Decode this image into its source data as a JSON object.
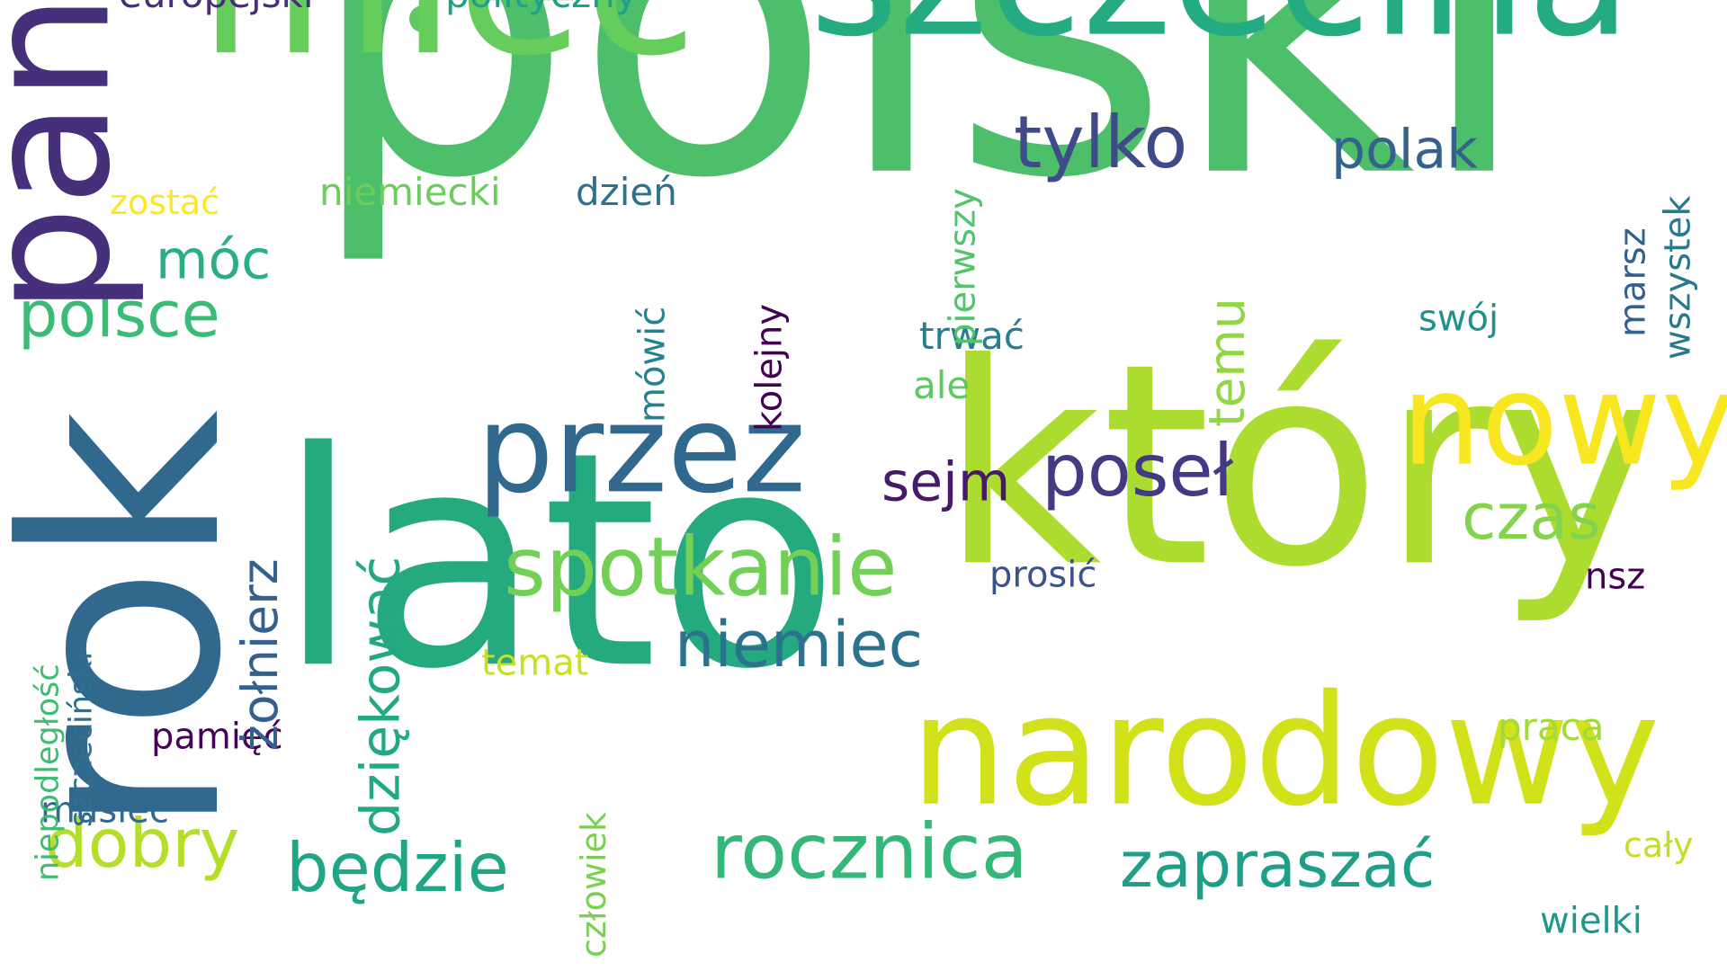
{
  "colors": {
    "c_polski": "#4dbf6a",
    "c_lato": "#25a97f",
    "c_rok": "#30688e",
    "c_ktory": "#addc30",
    "c_miec": "#66cc5c",
    "c_szczecina": "#25ab82",
    "c_pan": "#46307c",
    "c_narodowy": "#d1e21b",
    "c_nowy": "#f8e621",
    "c_przez": "#31688e",
    "c_spotkanie": "#71d055",
    "c_rocznica": "#35b779",
    "c_tylko": "#3e4a89",
    "c_posel": "#443983",
    "c_dobry": "#b5de2b",
    "c_bedzie": "#21a685",
    "c_dziekowac": "#23a884",
    "c_zolnierz": "#355f8d",
    "c_zapraszac": "#1f9f88",
    "c_niemiec": "#2c728e",
    "c_polsce": "#3bbb75",
    "c_czas": "#84d44b",
    "c_polak": "#33638d",
    "c_moc": "#2ab07f",
    "c_sejm": "#48186a",
    "c_temu": "#90d743",
    "c_niemiecki": "#6ccd5a",
    "c_dzien": "#2d718e",
    "c_zostac": "#fde725",
    "c_europejski": "#472d7b",
    "c_polityczny": "#1fa088",
    "c_pierwszy": "#52c569",
    "c_kolejny": "#440154",
    "c_mowic": "#26828e",
    "c_trwac": "#287d8e",
    "c_ale": "#5ec962",
    "c_swoj": "#21918c",
    "c_marsz": "#34608d",
    "c_wszystek": "#2a788e",
    "c_prosic": "#3b528b",
    "c_nsz": "#440154",
    "c_temat": "#c8e020",
    "c_pamiec": "#450457",
    "c_musiec": "#306a8e",
    "c_praca": "#a2da37",
    "c_caly": "#bddf26",
    "c_wielki": "#1f968b",
    "c_czlowiek": "#7ad151",
    "c_niepodleglosc": "#3fbc73",
    "c_szczecinski": "#2e6e8e"
  },
  "dot_color": "#5ec962",
  "words": {
    "polski": "polski",
    "lato": "lato",
    "rok": "rok",
    "ktory": "który",
    "miec": "mieć",
    "szczecina": "szczecina",
    "pan": "pan",
    "narodowy": "narodowy",
    "nowy": "nowy",
    "przez": "przez",
    "spotkanie": "spotkanie",
    "rocznica": "rocznica",
    "tylko": "tylko",
    "posel": "poseł",
    "dobry": "dobry",
    "bedzie": "będzie",
    "dziekowac": "dziękować",
    "zolnierz": "żołnierz",
    "zapraszac": "zapraszać",
    "niemiec": "niemiec",
    "polsce": "polsce",
    "czas": "czas",
    "polak": "polak",
    "moc": "móc",
    "sejm": "sejm",
    "temu": "temu",
    "niemiecki": "niemiecki",
    "dzien": "dzień",
    "zostac": "zostać",
    "europejski": "europejski",
    "polityczny": "polityczny",
    "pierwszy": "pierwszy",
    "kolejny": "kolejny",
    "mowic": "mówić",
    "trwac": "trwać",
    "ale": "ale",
    "swoj": "swój",
    "marsz": "marsz",
    "wszystek": "wszystek",
    "prosic": "prosić",
    "nsz": "nsz",
    "temat": "temat",
    "pamiec": "pamięć",
    "musiec": "musieć",
    "praca": "praca",
    "caly": "cały",
    "wielki": "wielki",
    "czlowiek": "człowiek",
    "niepodleglosc": "niepodległość",
    "szczecinski": "szczeciński"
  }
}
